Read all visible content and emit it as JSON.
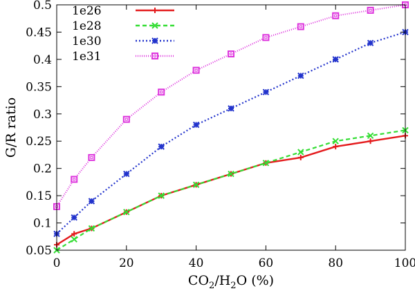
{
  "chart_data": {
    "type": "line",
    "title": "",
    "xlabel": {
      "main": "CO",
      "sub1": "2",
      "mid": "/H",
      "sub2": "2",
      "end": "O (%)"
    },
    "ylabel": "G/R ratio",
    "xlim": [
      0,
      100
    ],
    "ylim": [
      0.05,
      0.5
    ],
    "xticks": [
      0,
      20,
      40,
      60,
      80,
      100
    ],
    "yticks": [
      0.05,
      0.1,
      0.15,
      0.2,
      0.25,
      0.3,
      0.35,
      0.4,
      0.45,
      0.5
    ],
    "x": [
      0,
      5,
      10,
      20,
      30,
      40,
      50,
      60,
      70,
      80,
      90,
      100
    ],
    "legend_position": "top-left",
    "series": [
      {
        "name": "1e26",
        "color": "#e41a1c",
        "dash": "",
        "marker": "plus",
        "values": [
          0.06,
          0.08,
          0.09,
          0.12,
          0.15,
          0.17,
          0.19,
          0.21,
          0.22,
          0.24,
          0.25,
          0.26
        ]
      },
      {
        "name": "1e28",
        "color": "#33dd33",
        "dash": "6,4",
        "marker": "cross",
        "values": [
          0.05,
          0.07,
          0.09,
          0.12,
          0.15,
          0.17,
          0.19,
          0.21,
          0.23,
          0.25,
          0.26,
          0.27
        ]
      },
      {
        "name": "1e30",
        "color": "#2233cc",
        "dash": "2,3",
        "marker": "star",
        "values": [
          0.08,
          0.11,
          0.14,
          0.19,
          0.24,
          0.28,
          0.31,
          0.34,
          0.37,
          0.4,
          0.43,
          0.45
        ]
      },
      {
        "name": "1e31",
        "color": "#dd33dd",
        "dash": "1,2",
        "marker": "square",
        "values": [
          0.13,
          0.18,
          0.22,
          0.29,
          0.34,
          0.38,
          0.41,
          0.44,
          0.46,
          0.48,
          0.49,
          0.5
        ]
      }
    ]
  }
}
